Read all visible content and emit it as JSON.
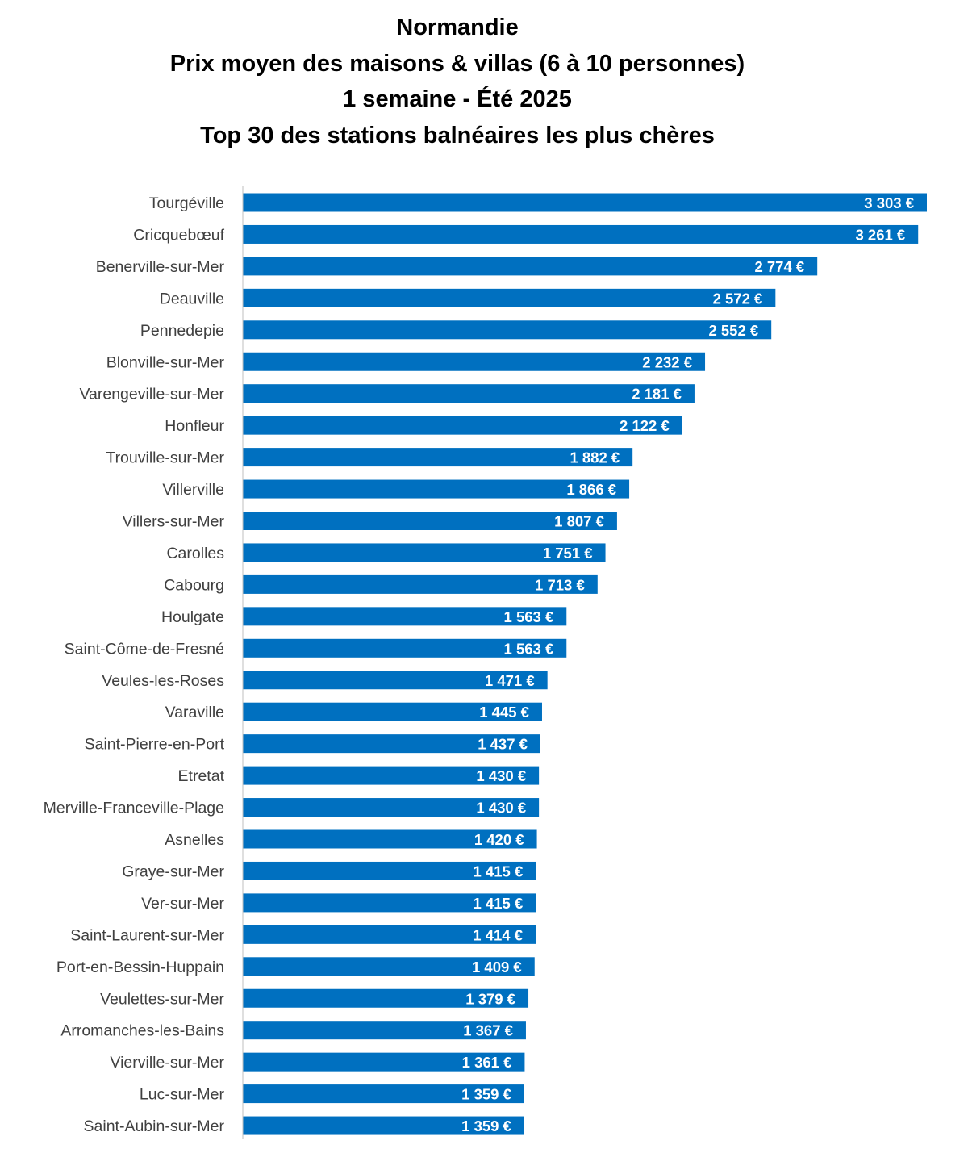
{
  "title_lines": [
    "Normandie",
    "Prix moyen des maisons & villas (6 à 10 personnes)",
    "1 semaine - Été 2025",
    "Top 30 des stations balnéaires les plus chères"
  ],
  "colors": {
    "bar": "#0070C0",
    "axis": "#BFBFBF",
    "category_text": "#404040",
    "value_text": "#FFFFFF"
  },
  "chart_data": {
    "type": "bar",
    "orientation": "horizontal",
    "title": "Normandie Prix moyen des maisons & villas (6 à 10 personnes) 1 semaine - Été 2025 Top 30 des stations balnéaires les plus chères",
    "categories": [
      "Tourgéville",
      "Cricquebœuf",
      "Benerville-sur-Mer",
      "Deauville",
      "Pennedepie",
      "Blonville-sur-Mer",
      "Varengeville-sur-Mer",
      "Honfleur",
      "Trouville-sur-Mer",
      "Villerville",
      "Villers-sur-Mer",
      "Carolles",
      "Cabourg",
      "Houlgate",
      "Saint-Côme-de-Fresné",
      "Veules-les-Roses",
      "Varaville",
      "Saint-Pierre-en-Port",
      "Etretat",
      "Merville-Franceville-Plage",
      "Asnelles",
      "Graye-sur-Mer",
      "Ver-sur-Mer",
      "Saint-Laurent-sur-Mer",
      "Port-en-Bessin-Huppain",
      "Veulettes-sur-Mer",
      "Arromanches-les-Bains",
      "Vierville-sur-Mer",
      "Luc-sur-Mer",
      "Saint-Aubin-sur-Mer"
    ],
    "values": [
      3303,
      3261,
      2774,
      2572,
      2552,
      2232,
      2181,
      2122,
      1882,
      1866,
      1807,
      1751,
      1713,
      1563,
      1563,
      1471,
      1445,
      1437,
      1430,
      1430,
      1420,
      1415,
      1415,
      1414,
      1409,
      1379,
      1367,
      1361,
      1359,
      1359
    ],
    "value_labels": [
      "3 303 €",
      "3 261 €",
      "2 774 €",
      "2 572 €",
      "2 552 €",
      "2 232 €",
      "2 181 €",
      "2 122 €",
      "1 882 €",
      "1 866 €",
      "1 807 €",
      "1 751 €",
      "1 713 €",
      "1 563 €",
      "1 563 €",
      "1 471 €",
      "1 445 €",
      "1 437 €",
      "1 430 €",
      "1 430 €",
      "1 420 €",
      "1 415 €",
      "1 415 €",
      "1 414 €",
      "1 409 €",
      "1 379 €",
      "1 367 €",
      "1 361 €",
      "1 359 €",
      "1 359 €"
    ],
    "unit": "€",
    "xlim": [
      0,
      3303
    ],
    "grid": false,
    "legend": "none"
  }
}
